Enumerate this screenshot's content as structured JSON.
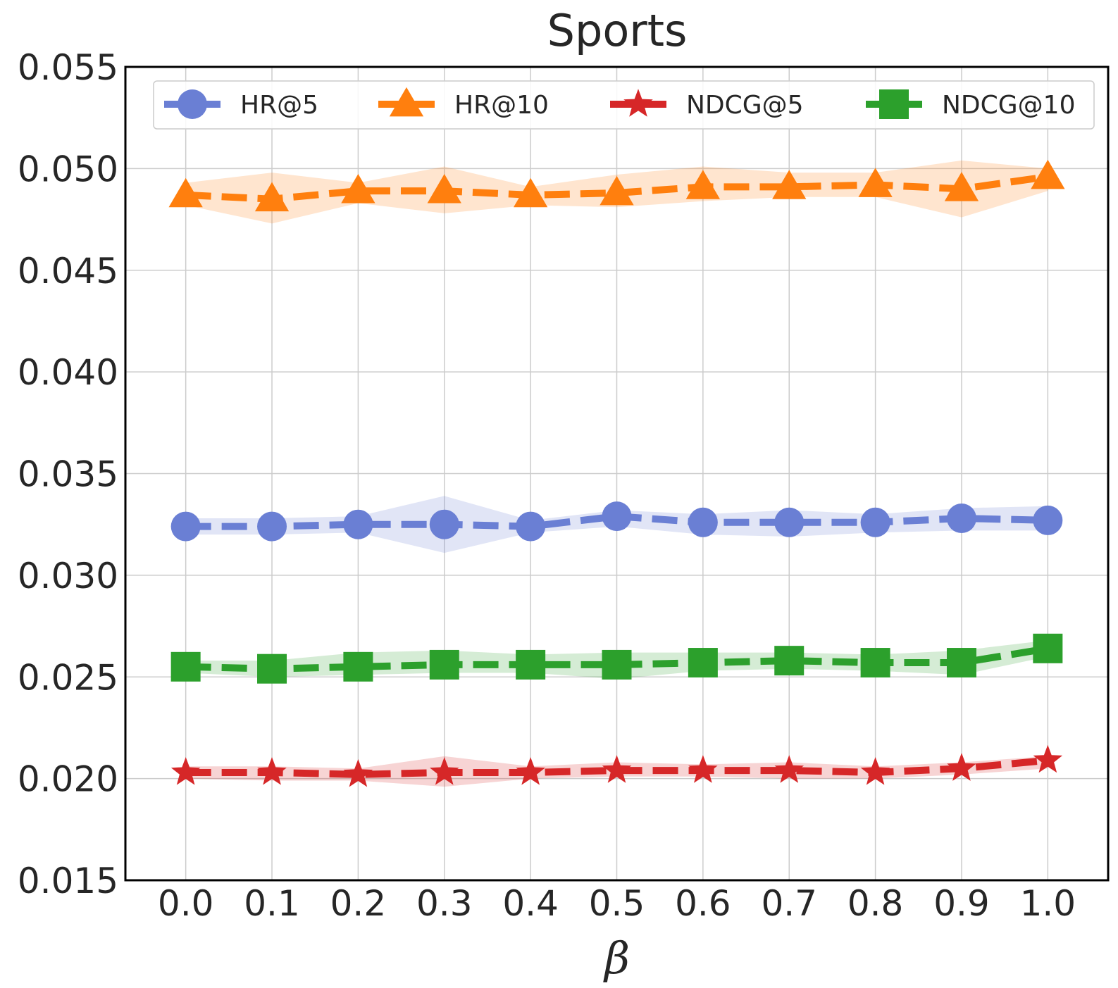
{
  "chart_data": {
    "type": "line",
    "title": "Sports",
    "xlabel": "β",
    "ylabel": "",
    "x": [
      0.0,
      0.1,
      0.2,
      0.3,
      0.4,
      0.5,
      0.6,
      0.7,
      0.8,
      0.9,
      1.0
    ],
    "x_tick_labels": [
      "0.0",
      "0.1",
      "0.2",
      "0.3",
      "0.4",
      "0.5",
      "0.6",
      "0.7",
      "0.8",
      "0.9",
      "1.0"
    ],
    "y_ticks": [
      0.015,
      0.02,
      0.025,
      0.03,
      0.035,
      0.04,
      0.045,
      0.05,
      0.055
    ],
    "y_tick_labels": [
      "0.015",
      "0.020",
      "0.025",
      "0.030",
      "0.035",
      "0.040",
      "0.045",
      "0.050",
      "0.055"
    ],
    "xlim": [
      -0.07,
      1.07
    ],
    "ylim": [
      0.015,
      0.055
    ],
    "grid": true,
    "legend_position": "top",
    "series": [
      {
        "name": "HR@5",
        "marker": "circle",
        "color": "#6a7fd4",
        "values": [
          0.0324,
          0.0324,
          0.0325,
          0.0325,
          0.0324,
          0.0329,
          0.0326,
          0.0326,
          0.0326,
          0.0328,
          0.0327
        ],
        "lower": [
          0.032,
          0.032,
          0.0321,
          0.0311,
          0.0321,
          0.0324,
          0.032,
          0.0319,
          0.0321,
          0.0322,
          0.0322
        ],
        "upper": [
          0.0328,
          0.0328,
          0.0329,
          0.0339,
          0.0327,
          0.0332,
          0.033,
          0.0332,
          0.033,
          0.0333,
          0.0334
        ]
      },
      {
        "name": "HR@10",
        "marker": "triangle",
        "color": "#ff7f0e",
        "values": [
          0.0487,
          0.0485,
          0.0489,
          0.0489,
          0.0487,
          0.0488,
          0.0491,
          0.0491,
          0.0492,
          0.049,
          0.0496
        ],
        "lower": [
          0.0482,
          0.0473,
          0.0483,
          0.0478,
          0.0482,
          0.0481,
          0.0484,
          0.0486,
          0.0486,
          0.0476,
          0.0489
        ],
        "upper": [
          0.0493,
          0.0498,
          0.0493,
          0.0501,
          0.0491,
          0.0497,
          0.0501,
          0.0498,
          0.0498,
          0.0504,
          0.05
        ]
      },
      {
        "name": "NDCG@5",
        "marker": "star",
        "color": "#d62728",
        "values": [
          0.0203,
          0.0203,
          0.0202,
          0.0203,
          0.0203,
          0.0204,
          0.0204,
          0.0204,
          0.0203,
          0.0205,
          0.0209
        ],
        "lower": [
          0.02,
          0.0199,
          0.0199,
          0.0196,
          0.02,
          0.0201,
          0.0201,
          0.02,
          0.02,
          0.0202,
          0.0205
        ],
        "upper": [
          0.0206,
          0.0206,
          0.0205,
          0.0211,
          0.0206,
          0.0208,
          0.0207,
          0.0208,
          0.0206,
          0.0208,
          0.0211
        ]
      },
      {
        "name": "NDCG@10",
        "marker": "square",
        "color": "#2ca02c",
        "values": [
          0.0255,
          0.0254,
          0.0255,
          0.0256,
          0.0256,
          0.0256,
          0.0257,
          0.0258,
          0.0257,
          0.0257,
          0.0264
        ],
        "lower": [
          0.0252,
          0.025,
          0.0251,
          0.0252,
          0.0252,
          0.0249,
          0.0253,
          0.0254,
          0.0253,
          0.0251,
          0.026
        ],
        "upper": [
          0.0258,
          0.0258,
          0.0262,
          0.0263,
          0.0261,
          0.0262,
          0.0262,
          0.0262,
          0.0261,
          0.0263,
          0.0268
        ]
      }
    ]
  }
}
